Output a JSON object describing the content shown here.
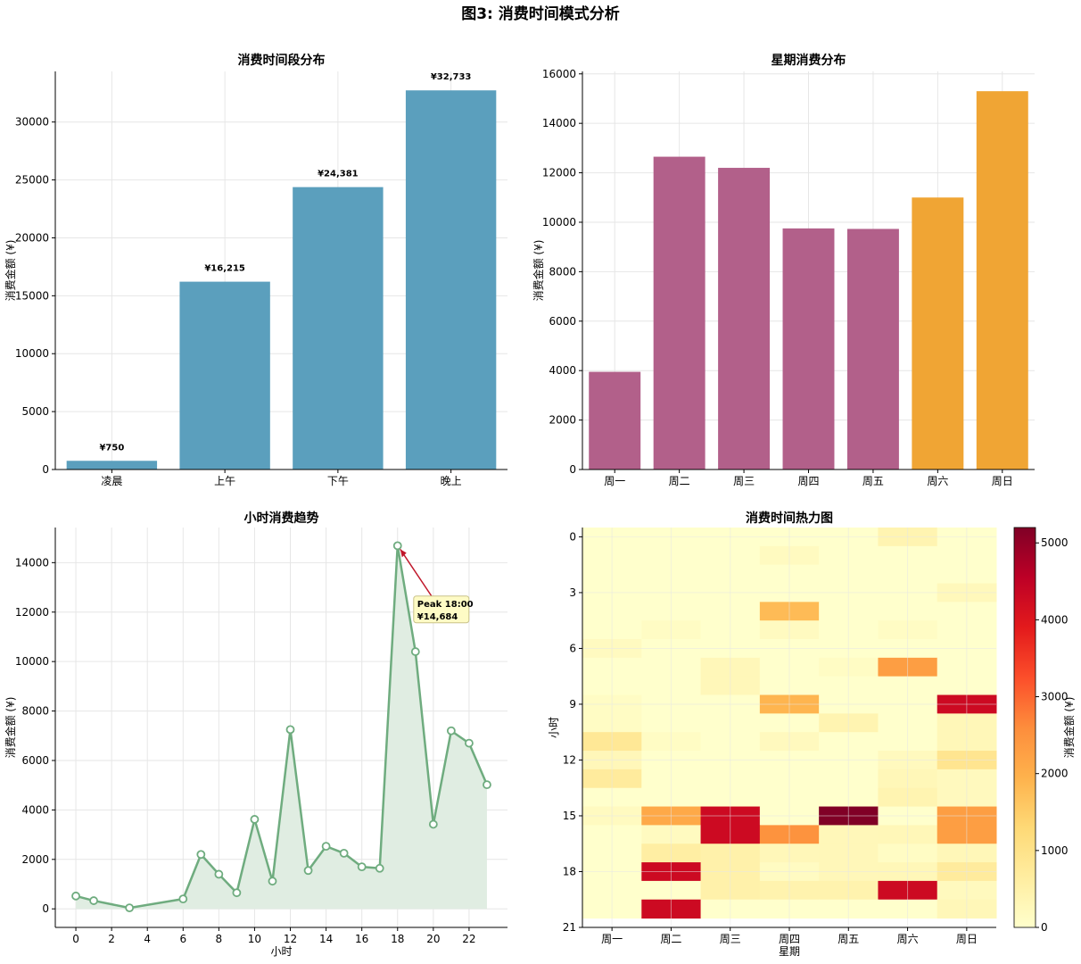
{
  "figure_title": "图3: 消费时间模式分析",
  "chart_data": [
    {
      "type": "bar",
      "title": "消费时间段分布",
      "xlabel": "",
      "ylabel": "消费金额 (¥)",
      "categories": [
        "凌晨",
        "上午",
        "下午",
        "晚上"
      ],
      "values": [
        750,
        16215,
        24381,
        32733
      ],
      "data_labels": [
        "¥750",
        "¥16,215",
        "¥24,381",
        "¥32,733"
      ],
      "ylim": [
        0,
        34370
      ],
      "yticks": [
        0,
        5000,
        10000,
        15000,
        20000,
        25000,
        30000
      ],
      "grid": true,
      "colors": {
        "bar": "#5b9fbd"
      }
    },
    {
      "type": "bar",
      "title": "星期消费分布",
      "xlabel": "",
      "ylabel": "消费金额 (¥)",
      "categories": [
        "周一",
        "周二",
        "周三",
        "周四",
        "周五",
        "周六",
        "周日"
      ],
      "values": [
        3950,
        12650,
        12200,
        9750,
        9730,
        11000,
        15300
      ],
      "ylim": [
        0,
        16100
      ],
      "yticks": [
        0,
        2000,
        4000,
        6000,
        8000,
        10000,
        12000,
        14000,
        16000
      ],
      "grid": true,
      "colors": {
        "weekday": "#b2608a",
        "weekend": "#f0a534"
      }
    },
    {
      "type": "line",
      "title": "小时消费趋势",
      "xlabel": "小时",
      "ylabel": "消费金额 (¥)",
      "x": [
        0,
        1,
        3,
        6,
        7,
        8,
        9,
        10,
        11,
        12,
        13,
        14,
        15,
        16,
        17,
        18,
        19,
        20,
        21,
        22,
        23
      ],
      "y": [
        520,
        330,
        40,
        400,
        2200,
        1400,
        650,
        3620,
        1120,
        7250,
        1550,
        2530,
        2250,
        1700,
        1640,
        14684,
        10400,
        3420,
        7200,
        6700,
        5020
      ],
      "xlim": [
        -1.15,
        24.15
      ],
      "ylim": [
        -750,
        15420
      ],
      "xticks": [
        0,
        2,
        4,
        6,
        8,
        10,
        12,
        14,
        16,
        18,
        20,
        22
      ],
      "yticks": [
        0,
        2000,
        4000,
        6000,
        8000,
        10000,
        12000,
        14000
      ],
      "grid": true,
      "annotation": {
        "x": 18,
        "y": 14684,
        "text_line1": "Peak 18:00",
        "text_line2": "¥14,684",
        "text_x": 19,
        "text_y": 12000
      },
      "colors": {
        "line": "#6fac7f",
        "fill": "#e0ede2",
        "arrow": "#c0182b",
        "box_fill": "#fefbc5",
        "box_edge": "#c9c28a"
      }
    },
    {
      "type": "heatmap",
      "title": "消费时间热力图",
      "xlabel": "星期",
      "ylabel": "小时",
      "x_categories": [
        "周一",
        "周二",
        "周三",
        "周四",
        "周五",
        "周六",
        "周日"
      ],
      "y_categories": [
        0,
        1,
        2,
        3,
        4,
        5,
        6,
        7,
        8,
        9,
        10,
        11,
        12,
        13,
        14,
        15,
        16,
        17,
        18,
        19,
        20
      ],
      "yticks": [
        0,
        3,
        6,
        9,
        12,
        15,
        18,
        21
      ],
      "values": [
        [
          0,
          0,
          0,
          0,
          0,
          400,
          0
        ],
        [
          0,
          0,
          0,
          180,
          0,
          0,
          0
        ],
        [
          0,
          0,
          0,
          0,
          0,
          0,
          0
        ],
        [
          0,
          0,
          0,
          0,
          0,
          0,
          250
        ],
        [
          0,
          0,
          0,
          1800,
          0,
          0,
          0
        ],
        [
          0,
          120,
          0,
          180,
          0,
          120,
          0
        ],
        [
          180,
          0,
          0,
          0,
          0,
          0,
          0
        ],
        [
          0,
          0,
          280,
          0,
          120,
          2300,
          0
        ],
        [
          0,
          0,
          280,
          0,
          0,
          0,
          0
        ],
        [
          120,
          0,
          0,
          1900,
          0,
          0,
          4300
        ],
        [
          120,
          0,
          0,
          0,
          400,
          0,
          300
        ],
        [
          800,
          120,
          0,
          200,
          0,
          0,
          300
        ],
        [
          280,
          0,
          0,
          0,
          0,
          200,
          900
        ],
        [
          700,
          0,
          0,
          0,
          0,
          300,
          200
        ],
        [
          0,
          0,
          0,
          0,
          0,
          400,
          200
        ],
        [
          180,
          2100,
          4300,
          0,
          5200,
          0,
          2300
        ],
        [
          0,
          180,
          4300,
          2500,
          280,
          300,
          2300
        ],
        [
          0,
          600,
          500,
          280,
          280,
          120,
          300
        ],
        [
          0,
          4300,
          500,
          150,
          280,
          300,
          700
        ],
        [
          0,
          0,
          500,
          450,
          450,
          4300,
          200
        ],
        [
          0,
          4300,
          0,
          0,
          0,
          0,
          300
        ]
      ],
      "colorbar": {
        "label": "消费金额 (¥)",
        "min": 0,
        "max": 5200,
        "ticks": [
          0,
          1000,
          2000,
          3000,
          4000,
          5000
        ]
      },
      "colormap": "YlOrRd"
    }
  ]
}
